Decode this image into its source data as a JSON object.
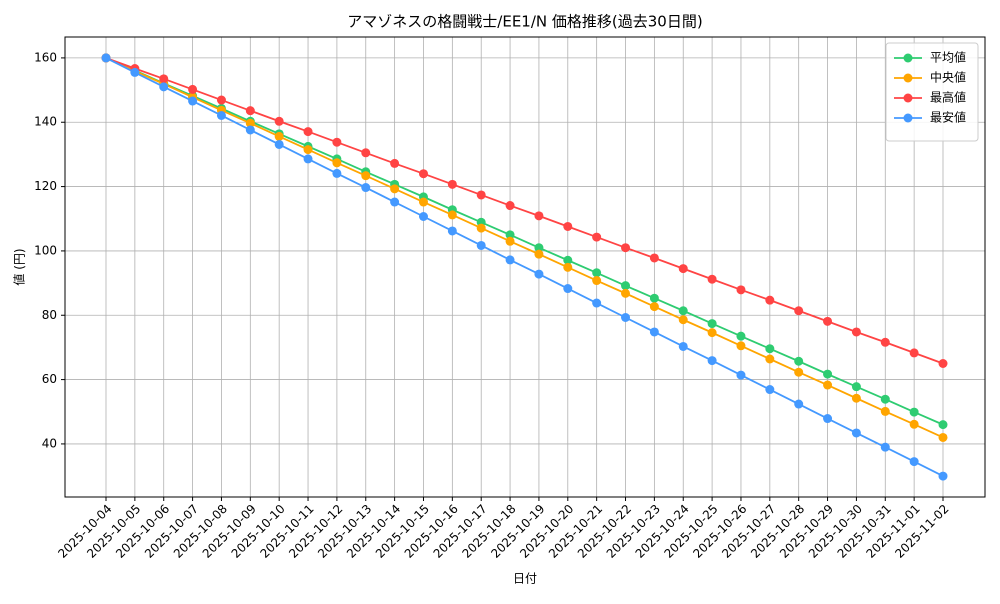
{
  "chart_data": {
    "type": "line",
    "title": "アマゾネスの格闘戦士/EE1/N 価格推移(過去30日間)",
    "x_label": "日付",
    "y_label": "値 (円)",
    "categories": [
      "2025-10-04",
      "2025-10-05",
      "2025-10-06",
      "2025-10-07",
      "2025-10-08",
      "2025-10-09",
      "2025-10-10",
      "2025-10-11",
      "2025-10-12",
      "2025-10-13",
      "2025-10-14",
      "2025-10-15",
      "2025-10-16",
      "2025-10-17",
      "2025-10-18",
      "2025-10-19",
      "2025-10-20",
      "2025-10-21",
      "2025-10-22",
      "2025-10-23",
      "2025-10-24",
      "2025-10-25",
      "2025-10-26",
      "2025-10-27",
      "2025-10-28",
      "2025-10-29",
      "2025-10-30",
      "2025-10-31",
      "2025-11-01",
      "2025-11-02"
    ],
    "series": [
      {
        "name": "平均値",
        "color": "#2ecc71",
        "values": [
          160,
          156.1,
          152.1,
          148.2,
          144.3,
          140.3,
          136.4,
          132.5,
          128.6,
          124.6,
          120.7,
          116.8,
          112.8,
          108.9,
          105.0,
          101.0,
          97.1,
          93.2,
          89.2,
          85.3,
          81.4,
          77.4,
          73.5,
          69.6,
          65.7,
          61.7,
          57.8,
          53.9,
          49.9,
          46.0
        ]
      },
      {
        "name": "中央値",
        "color": "#ffa500",
        "values": [
          160,
          155.9,
          151.9,
          147.8,
          143.7,
          139.7,
          135.6,
          131.5,
          127.4,
          123.4,
          119.3,
          115.2,
          111.2,
          107.1,
          103.0,
          99.0,
          94.9,
          90.8,
          86.8,
          82.7,
          78.6,
          74.6,
          70.5,
          66.4,
          62.3,
          58.3,
          54.2,
          50.1,
          46.1,
          42.0
        ]
      },
      {
        "name": "最高値",
        "color": "#ff4444",
        "values": [
          160,
          156.7,
          153.5,
          150.2,
          146.9,
          143.6,
          140.3,
          137.1,
          133.8,
          130.5,
          127.2,
          124.0,
          120.7,
          117.4,
          114.1,
          110.9,
          107.6,
          104.3,
          101.0,
          97.8,
          94.5,
          91.2,
          87.9,
          84.7,
          81.4,
          78.1,
          74.8,
          71.6,
          68.3,
          65.0
        ]
      },
      {
        "name": "最安値",
        "color": "#4499ff",
        "values": [
          160,
          155.5,
          151.0,
          146.6,
          142.1,
          137.6,
          133.1,
          128.6,
          124.1,
          119.7,
          115.2,
          110.7,
          106.2,
          101.7,
          97.2,
          92.8,
          88.3,
          83.8,
          79.3,
          74.8,
          70.3,
          65.9,
          61.4,
          56.9,
          52.4,
          47.9,
          43.4,
          39.0,
          34.5,
          30.0
        ]
      }
    ],
    "ylim": [
      23.5,
      166.5
    ],
    "yticks": [
      40,
      60,
      80,
      100,
      120,
      140,
      160
    ],
    "grid": true,
    "legend": "upper right"
  }
}
